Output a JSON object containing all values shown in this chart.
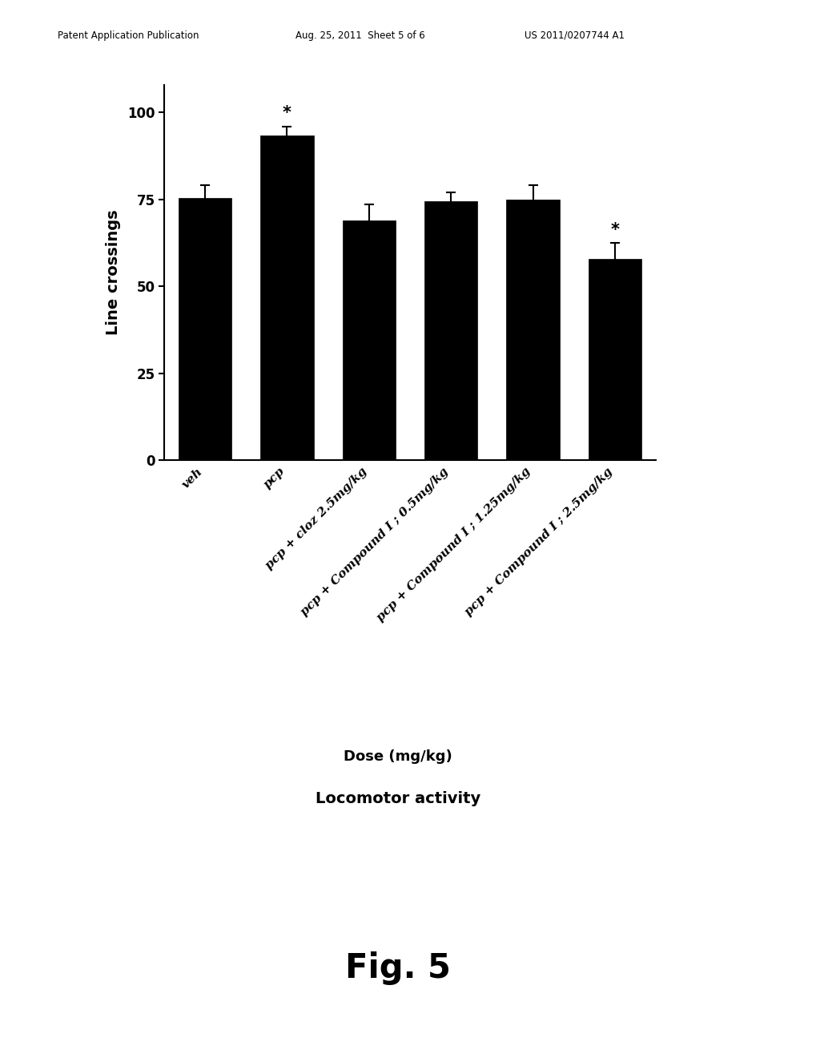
{
  "categories": [
    "veh",
    "pcp",
    "pcp + cloz 2.5mg/kg",
    "pcp + Compound I ; 0.5mg/kg",
    "pcp + Compound I ; 1.25mg/kg",
    "pcp + Compound I ; 2.5mg/kg"
  ],
  "values": [
    75.5,
    93.5,
    69.0,
    74.5,
    75.0,
    58.0
  ],
  "errors": [
    3.5,
    2.5,
    4.5,
    2.5,
    4.0,
    4.5
  ],
  "bar_color": "#000000",
  "error_color": "#000000",
  "bar_width": 0.65,
  "ylabel": "Line crossings",
  "ylim": [
    0,
    108
  ],
  "yticks": [
    0,
    25,
    50,
    75,
    100
  ],
  "xlabel_main": "Dose (mg/kg)",
  "title_bottom": "Locomotor activity",
  "fig_label": "Fig. 5",
  "significant": [
    false,
    true,
    false,
    false,
    false,
    true
  ],
  "background_color": "#ffffff",
  "header_left": "Patent Application Publication",
  "header_mid": "Aug. 25, 2011  Sheet 5 of 6",
  "header_right": "US 2011/0207744 A1",
  "tick_labels": [
    "veh",
    "pcp",
    "pcp + cloz 2.5mg/kg",
    "pcp + Compound I ; 0.5mg/kg",
    "pcp + Compound I ; 1.25mg/kg",
    "pcp + Compound I ; 2.5mg/kg"
  ]
}
